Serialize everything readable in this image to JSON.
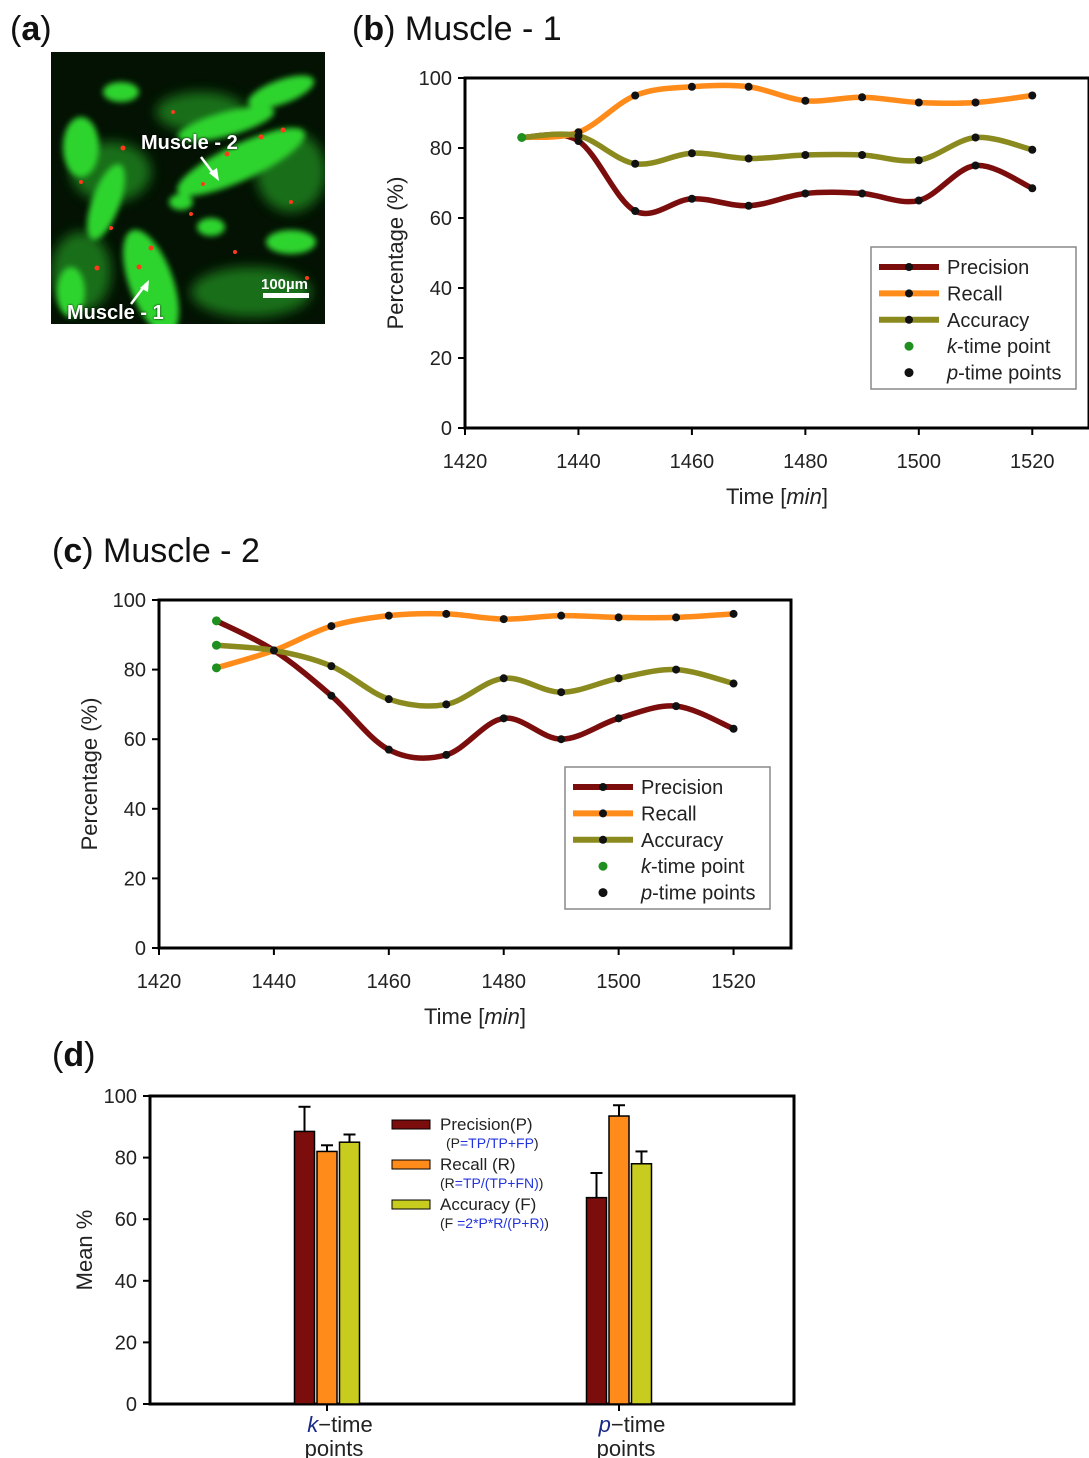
{
  "panels": {
    "a": {
      "letter": "a",
      "muscle2_label": "Muscle - 2",
      "muscle1_label": "Muscle - 1",
      "scale_label": "100µm"
    },
    "b": {
      "letter": "b",
      "title": "Muscle - 1"
    },
    "c": {
      "letter": "c",
      "title": "Muscle - 2"
    },
    "d": {
      "letter": "d"
    }
  },
  "chart_data": [
    {
      "id": "b",
      "type": "line",
      "title": "Muscle - 1",
      "xlabel_main": "Time",
      "xlabel_unit": "min",
      "ylabel": "Percentage (%)",
      "xlim": [
        1420,
        1530
      ],
      "ylim": [
        0,
        100
      ],
      "xticks": [
        1420,
        1440,
        1460,
        1480,
        1500,
        1520
      ],
      "yticks": [
        0,
        20,
        40,
        60,
        80,
        100
      ],
      "k_time_point": {
        "x": 1430,
        "y": 83
      },
      "series": [
        {
          "name": "Precision",
          "color": "#7b0d0d",
          "x": [
            1430,
            1440,
            1450,
            1460,
            1470,
            1480,
            1490,
            1500,
            1510,
            1520
          ],
          "y": [
            83,
            82,
            62,
            65.5,
            63.5,
            67,
            67,
            65,
            75,
            68.5
          ]
        },
        {
          "name": "Recall",
          "color": "#ff8c1a",
          "x": [
            1430,
            1440,
            1450,
            1460,
            1470,
            1480,
            1490,
            1500,
            1510,
            1520
          ],
          "y": [
            83,
            84.5,
            95,
            97.5,
            97.5,
            93.5,
            94.5,
            93,
            93,
            95
          ]
        },
        {
          "name": "Accuracy",
          "color": "#8a8a1e",
          "x": [
            1430,
            1440,
            1450,
            1460,
            1470,
            1480,
            1490,
            1500,
            1510,
            1520
          ],
          "y": [
            83,
            83.5,
            75.5,
            78.5,
            77,
            78,
            78,
            76.5,
            83,
            79.5
          ]
        }
      ],
      "legend": {
        "placement": "lower-right",
        "entries": [
          {
            "kind": "line",
            "color": "#7b0d0d",
            "pre": "Precision",
            "ital": "",
            "post": ""
          },
          {
            "kind": "line",
            "color": "#ff8c1a",
            "pre": "Recall",
            "ital": "",
            "post": ""
          },
          {
            "kind": "line",
            "color": "#8a8a1e",
            "pre": "Accuracy",
            "ital": "",
            "post": ""
          },
          {
            "kind": "dot",
            "color": "#1f8f1f",
            "pre": "",
            "ital": "k",
            "post": "-time point"
          },
          {
            "kind": "dot",
            "color": "#111111",
            "pre": "",
            "ital": "p",
            "post": "-time points"
          }
        ]
      }
    },
    {
      "id": "c",
      "type": "line",
      "title": "Muscle - 2",
      "xlabel_main": "Time",
      "xlabel_unit": "min",
      "ylabel": "Percentage (%)",
      "xlim": [
        1420,
        1530
      ],
      "ylim": [
        0,
        100
      ],
      "xticks": [
        1420,
        1440,
        1460,
        1480,
        1500,
        1520
      ],
      "yticks": [
        0,
        20,
        40,
        60,
        80,
        100
      ],
      "k_time_points": [
        {
          "x": 1430,
          "y": 94
        },
        {
          "x": 1430,
          "y": 87
        },
        {
          "x": 1430,
          "y": 80.5
        }
      ],
      "series": [
        {
          "name": "Precision",
          "color": "#7b0d0d",
          "x": [
            1430,
            1440,
            1450,
            1460,
            1470,
            1480,
            1490,
            1500,
            1510,
            1520
          ],
          "y": [
            94,
            85.5,
            72.5,
            57,
            55.5,
            66,
            60,
            66,
            69.5,
            63
          ]
        },
        {
          "name": "Recall",
          "color": "#ff8c1a",
          "x": [
            1430,
            1440,
            1450,
            1460,
            1470,
            1480,
            1490,
            1500,
            1510,
            1520
          ],
          "y": [
            80.5,
            85.5,
            92.5,
            95.5,
            96,
            94.5,
            95.5,
            95,
            95,
            96
          ]
        },
        {
          "name": "Accuracy",
          "color": "#8a8a1e",
          "x": [
            1430,
            1440,
            1450,
            1460,
            1470,
            1480,
            1490,
            1500,
            1510,
            1520
          ],
          "y": [
            87,
            85.5,
            81,
            71.5,
            70,
            77.5,
            73.5,
            77.5,
            80,
            76
          ]
        }
      ],
      "legend": {
        "placement": "lower-right",
        "entries": [
          {
            "kind": "line",
            "color": "#7b0d0d",
            "pre": "Precision",
            "ital": "",
            "post": ""
          },
          {
            "kind": "line",
            "color": "#ff8c1a",
            "pre": "Recall",
            "ital": "",
            "post": ""
          },
          {
            "kind": "line",
            "color": "#8a8a1e",
            "pre": "Accuracy",
            "ital": "",
            "post": ""
          },
          {
            "kind": "dot",
            "color": "#1f8f1f",
            "pre": "",
            "ital": "k",
            "post": "-time point"
          },
          {
            "kind": "dot",
            "color": "#111111",
            "pre": "",
            "ital": "p",
            "post": "-time points"
          }
        ]
      }
    },
    {
      "id": "d",
      "type": "bar",
      "ylabel": "Mean %",
      "ylim": [
        0,
        100
      ],
      "yticks": [
        0,
        20,
        40,
        60,
        80,
        100
      ],
      "categories": [
        {
          "ital": "k",
          "rest": "−time",
          "line2": "points"
        },
        {
          "ital": "p",
          "rest": "−time",
          "line2": "points"
        }
      ],
      "series": [
        {
          "name": "Precision(P)",
          "color": "#7b0d0d",
          "values": [
            88.5,
            67
          ],
          "errors": [
            8,
            8
          ]
        },
        {
          "name": "Recall (R)",
          "color": "#ff8c1a",
          "values": [
            82,
            93.5
          ],
          "errors": [
            2,
            3.5
          ]
        },
        {
          "name": "Accuracy (F)",
          "color": "#c8cc1e",
          "values": [
            85,
            78
          ],
          "errors": [
            2.5,
            4
          ]
        }
      ],
      "legend": {
        "placement": "top-center",
        "entries": [
          {
            "color": "#7b0d0d",
            "name": "Precision(P)",
            "f_pre": "(P",
            "f_blue": "=TP/TP+FP",
            "f_post": ")"
          },
          {
            "color": "#ff8c1a",
            "name": "Recall (R)",
            "f_pre": "(R",
            "f_blue": "=TP/(TP+FN)",
            "f_post": ")"
          },
          {
            "color": "#c8cc1e",
            "name": "Accuracy (F)",
            "f_pre": "(F ",
            "f_blue": "=2*P*R/(P+R)",
            "f_post": ")"
          }
        ]
      }
    }
  ]
}
